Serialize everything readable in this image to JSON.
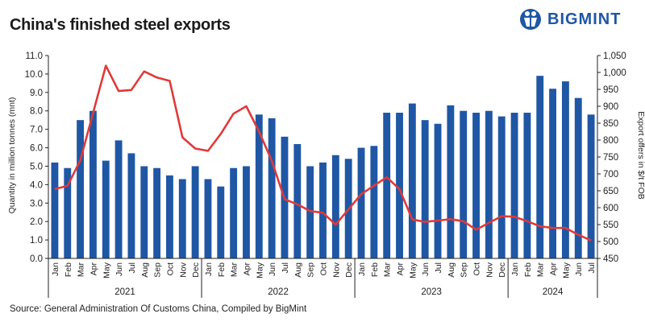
{
  "title": "China's finished steel exports",
  "logo": {
    "text": "BIGMINT",
    "icon": "bigmint-globe-icon"
  },
  "source": "Source: General Administration Of Customs China, Compiled by BigMint",
  "colors": {
    "bar": "#1f57a4",
    "line": "#e03a3a",
    "axis": "#222222",
    "grid": "#d0d0d0"
  },
  "chart_data": {
    "type": "bar",
    "title": "China's finished steel exports",
    "ylabel": "Quantity in million tonnes (mnt)",
    "y2label": "Export offers in $/t FOB",
    "ylim": [
      0,
      11
    ],
    "y2lim": [
      450,
      1050
    ],
    "yticks": [
      "0.0",
      "1.0",
      "2.0",
      "3.0",
      "4.0",
      "5.0",
      "6.0",
      "7.0",
      "8.0",
      "9.0",
      "10.0",
      "11.0"
    ],
    "y2ticks": [
      "450",
      "500",
      "550",
      "600",
      "650",
      "700",
      "750",
      "800",
      "850",
      "900",
      "950",
      "1,000",
      "1,050"
    ],
    "grid": false,
    "groups": [
      {
        "year": "2021",
        "months": [
          "Jan",
          "Feb",
          "Mar",
          "Apr",
          "May",
          "Jun",
          "Jul",
          "Aug",
          "Sep",
          "Oct",
          "Nov",
          "Dec"
        ]
      },
      {
        "year": "2022",
        "months": [
          "Jan",
          "Feb",
          "Mar",
          "Apr",
          "May",
          "Jun",
          "Jul",
          "Aug",
          "Sep",
          "Oct",
          "Nov",
          "Dec"
        ]
      },
      {
        "year": "2023",
        "months": [
          "Jan",
          "Feb",
          "Mar",
          "Apr",
          "May",
          "Jun",
          "Jul",
          "Aug",
          "Sep",
          "Oct",
          "Nov",
          "Dec"
        ]
      },
      {
        "year": "2024",
        "months": [
          "Jan",
          "Feb",
          "Mar",
          "Apr",
          "May",
          "Jun",
          "Jul"
        ]
      }
    ],
    "series": [
      {
        "axis": "left",
        "type": "bar",
        "values": [
          5.2,
          4.9,
          7.5,
          8.0,
          5.3,
          6.4,
          5.7,
          5.0,
          4.9,
          4.5,
          4.3,
          5.0,
          4.3,
          3.9,
          4.9,
          5.0,
          7.8,
          7.6,
          6.6,
          6.2,
          5.0,
          5.2,
          5.6,
          5.4,
          6.0,
          6.1,
          7.9,
          7.9,
          8.4,
          7.5,
          7.3,
          8.3,
          8.0,
          7.9,
          8.0,
          7.7,
          7.9,
          7.9,
          9.9,
          9.2,
          9.6,
          8.7,
          7.8
        ]
      },
      {
        "axis": "right",
        "type": "line",
        "values": [
          655,
          665,
          740,
          880,
          1020,
          945,
          948,
          1003,
          985,
          975,
          808,
          775,
          768,
          818,
          878,
          900,
          825,
          738,
          625,
          610,
          590,
          585,
          550,
          595,
          640,
          665,
          690,
          655,
          565,
          558,
          562,
          566,
          560,
          535,
          555,
          575,
          573,
          560,
          545,
          540,
          540,
          520,
          503
        ]
      }
    ]
  }
}
